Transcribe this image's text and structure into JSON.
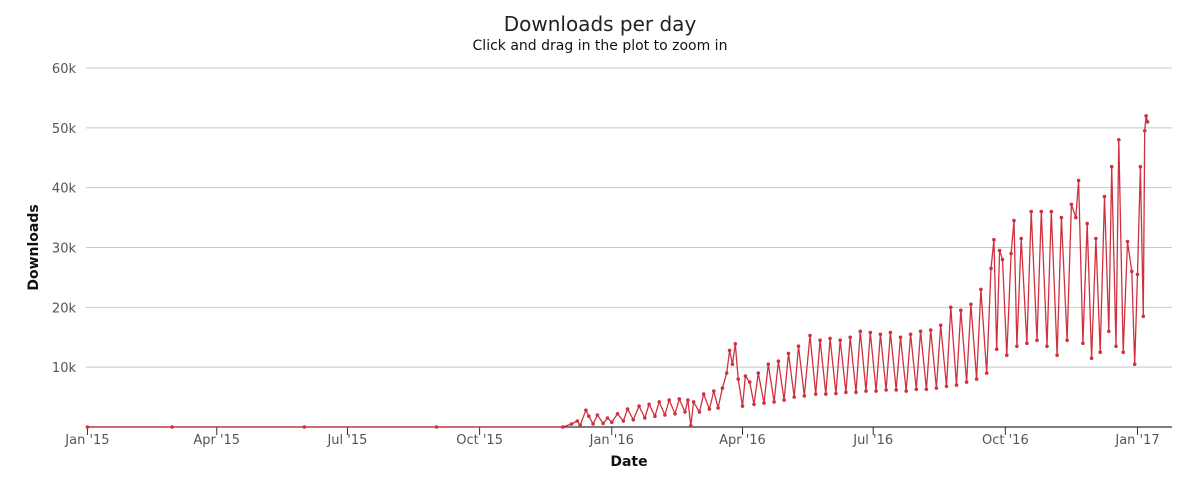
{
  "chart_data": {
    "type": "line",
    "title": "Downloads per day",
    "subtitle": "Click and drag in the plot to zoom in",
    "xlabel": "Date",
    "ylabel": "Downloads",
    "x_range": [
      "2014-12-31",
      "2017-01-25"
    ],
    "ylim": [
      0,
      60000
    ],
    "grid": true,
    "legend": "none",
    "line_color": "#d0313f",
    "x_ticks": [
      {
        "label": "Jan '15",
        "date": "2015-01-01"
      },
      {
        "label": "Apr '15",
        "date": "2015-04-01"
      },
      {
        "label": "Jul '15",
        "date": "2015-07-01"
      },
      {
        "label": "Oct '15",
        "date": "2015-10-01"
      },
      {
        "label": "Jan '16",
        "date": "2016-01-01"
      },
      {
        "label": "Apr '16",
        "date": "2016-04-01"
      },
      {
        "label": "Jul '16",
        "date": "2016-07-01"
      },
      {
        "label": "Oct '16",
        "date": "2016-10-01"
      },
      {
        "label": "Jan '17",
        "date": "2017-01-01"
      }
    ],
    "y_ticks": [
      {
        "label": "10k",
        "value": 10000
      },
      {
        "label": "20k",
        "value": 20000
      },
      {
        "label": "30k",
        "value": 30000
      },
      {
        "label": "40k",
        "value": 40000
      },
      {
        "label": "50k",
        "value": 50000
      },
      {
        "label": "60k",
        "value": 60000
      }
    ],
    "series": [
      {
        "points": [
          [
            "2015-01-01",
            0
          ],
          [
            "2015-03-01",
            0
          ],
          [
            "2015-06-01",
            0
          ],
          [
            "2015-09-01",
            0
          ],
          [
            "2015-11-28",
            0
          ],
          [
            "2015-12-04",
            500
          ],
          [
            "2015-12-08",
            1000
          ],
          [
            "2015-12-10",
            300
          ],
          [
            "2015-12-14",
            2800
          ],
          [
            "2015-12-16",
            1800
          ],
          [
            "2015-12-19",
            500
          ],
          [
            "2015-12-22",
            2000
          ],
          [
            "2015-12-26",
            600
          ],
          [
            "2015-12-29",
            1500
          ],
          [
            "2016-01-01",
            800
          ],
          [
            "2016-01-05",
            2200
          ],
          [
            "2016-01-09",
            1000
          ],
          [
            "2016-01-12",
            3000
          ],
          [
            "2016-01-16",
            1200
          ],
          [
            "2016-01-20",
            3500
          ],
          [
            "2016-01-24",
            1500
          ],
          [
            "2016-01-27",
            3800
          ],
          [
            "2016-01-31",
            1800
          ],
          [
            "2016-02-03",
            4200
          ],
          [
            "2016-02-07",
            2000
          ],
          [
            "2016-02-10",
            4500
          ],
          [
            "2016-02-14",
            2200
          ],
          [
            "2016-02-17",
            4700
          ],
          [
            "2016-02-21",
            2500
          ],
          [
            "2016-02-23",
            4500
          ],
          [
            "2016-02-25",
            200
          ],
          [
            "2016-02-27",
            4200
          ],
          [
            "2016-03-02",
            2500
          ],
          [
            "2016-03-05",
            5500
          ],
          [
            "2016-03-09",
            3000
          ],
          [
            "2016-03-12",
            6000
          ],
          [
            "2016-03-15",
            3200
          ],
          [
            "2016-03-18",
            6500
          ],
          [
            "2016-03-21",
            9000
          ],
          [
            "2016-03-23",
            12800
          ],
          [
            "2016-03-25",
            10500
          ],
          [
            "2016-03-27",
            13900
          ],
          [
            "2016-03-29",
            8000
          ],
          [
            "2016-04-01",
            3500
          ],
          [
            "2016-04-03",
            8500
          ],
          [
            "2016-04-06",
            7500
          ],
          [
            "2016-04-09",
            3800
          ],
          [
            "2016-04-12",
            9000
          ],
          [
            "2016-04-16",
            4000
          ],
          [
            "2016-04-19",
            10500
          ],
          [
            "2016-04-23",
            4200
          ],
          [
            "2016-04-26",
            11000
          ],
          [
            "2016-04-30",
            4500
          ],
          [
            "2016-05-03",
            12300
          ],
          [
            "2016-05-07",
            5000
          ],
          [
            "2016-05-10",
            13500
          ],
          [
            "2016-05-14",
            5200
          ],
          [
            "2016-05-18",
            15300
          ],
          [
            "2016-05-22",
            5500
          ],
          [
            "2016-05-25",
            14500
          ],
          [
            "2016-05-29",
            5500
          ],
          [
            "2016-06-01",
            14800
          ],
          [
            "2016-06-05",
            5600
          ],
          [
            "2016-06-08",
            14500
          ],
          [
            "2016-06-12",
            5800
          ],
          [
            "2016-06-15",
            15000
          ],
          [
            "2016-06-19",
            5800
          ],
          [
            "2016-06-22",
            16000
          ],
          [
            "2016-06-26",
            6000
          ],
          [
            "2016-06-29",
            15800
          ],
          [
            "2016-07-03",
            6000
          ],
          [
            "2016-07-06",
            15500
          ],
          [
            "2016-07-10",
            6200
          ],
          [
            "2016-07-13",
            15800
          ],
          [
            "2016-07-17",
            6200
          ],
          [
            "2016-07-20",
            15000
          ],
          [
            "2016-07-24",
            6000
          ],
          [
            "2016-07-27",
            15500
          ],
          [
            "2016-07-31",
            6300
          ],
          [
            "2016-08-03",
            16000
          ],
          [
            "2016-08-07",
            6300
          ],
          [
            "2016-08-10",
            16200
          ],
          [
            "2016-08-14",
            6500
          ],
          [
            "2016-08-17",
            17000
          ],
          [
            "2016-08-21",
            6800
          ],
          [
            "2016-08-24",
            20000
          ],
          [
            "2016-08-28",
            7000
          ],
          [
            "2016-08-31",
            19500
          ],
          [
            "2016-09-04",
            7500
          ],
          [
            "2016-09-07",
            20500
          ],
          [
            "2016-09-11",
            8000
          ],
          [
            "2016-09-14",
            23000
          ],
          [
            "2016-09-18",
            9000
          ],
          [
            "2016-09-21",
            26500
          ],
          [
            "2016-09-23",
            31300
          ],
          [
            "2016-09-25",
            13000
          ],
          [
            "2016-09-27",
            29500
          ],
          [
            "2016-09-29",
            28000
          ],
          [
            "2016-10-02",
            12000
          ],
          [
            "2016-10-05",
            29000
          ],
          [
            "2016-10-07",
            34500
          ],
          [
            "2016-10-09",
            13500
          ],
          [
            "2016-10-12",
            31500
          ],
          [
            "2016-10-16",
            14000
          ],
          [
            "2016-10-19",
            36000
          ],
          [
            "2016-10-23",
            14500
          ],
          [
            "2016-10-26",
            36000
          ],
          [
            "2016-10-30",
            13500
          ],
          [
            "2016-11-02",
            36000
          ],
          [
            "2016-11-06",
            12000
          ],
          [
            "2016-11-09",
            35000
          ],
          [
            "2016-11-13",
            14500
          ],
          [
            "2016-11-16",
            37200
          ],
          [
            "2016-11-19",
            35000
          ],
          [
            "2016-11-21",
            41200
          ],
          [
            "2016-11-24",
            14000
          ],
          [
            "2016-11-27",
            34000
          ],
          [
            "2016-11-30",
            11500
          ],
          [
            "2016-12-03",
            31500
          ],
          [
            "2016-12-06",
            12500
          ],
          [
            "2016-12-09",
            38500
          ],
          [
            "2016-12-12",
            16000
          ],
          [
            "2016-12-14",
            43500
          ],
          [
            "2016-12-17",
            13500
          ],
          [
            "2016-12-19",
            48000
          ],
          [
            "2016-12-22",
            12500
          ],
          [
            "2016-12-25",
            31000
          ],
          [
            "2016-12-28",
            26000
          ],
          [
            "2016-12-30",
            10500
          ],
          [
            "2017-01-01",
            25500
          ],
          [
            "2017-01-03",
            43500
          ],
          [
            "2017-01-05",
            18500
          ],
          [
            "2017-01-06",
            49500
          ],
          [
            "2017-01-07",
            52000
          ],
          [
            "2017-01-08",
            51000
          ]
        ]
      }
    ]
  }
}
